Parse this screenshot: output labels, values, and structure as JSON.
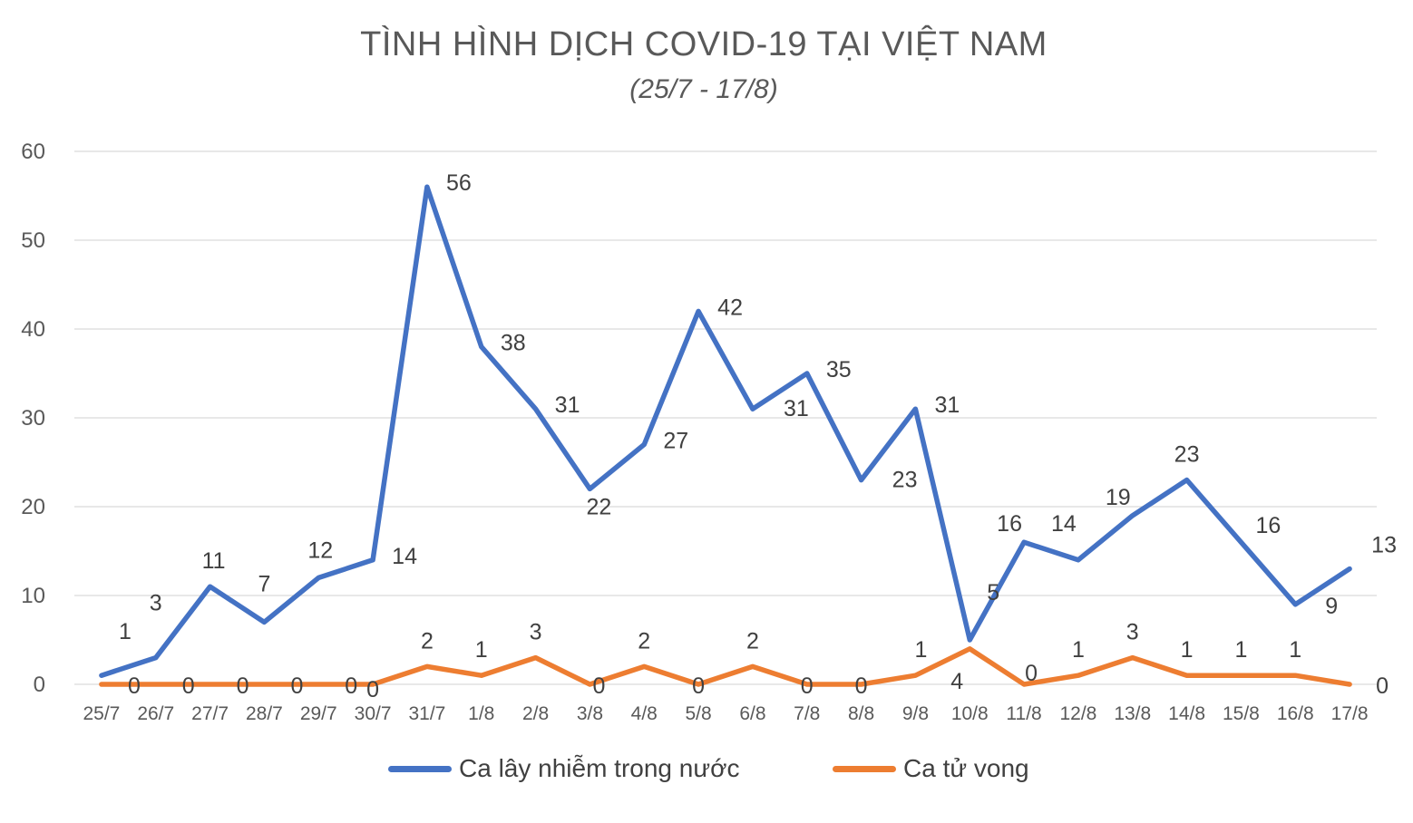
{
  "title": "TÌNH HÌNH DỊCH COVID-19 TẠI VIỆT NAM",
  "subtitle": "(25/7 - 17/8)",
  "chart_data": {
    "type": "line",
    "categories": [
      "25/7",
      "26/7",
      "27/7",
      "28/7",
      "29/7",
      "30/7",
      "31/7",
      "1/8",
      "2/8",
      "3/8",
      "4/8",
      "5/8",
      "6/8",
      "7/8",
      "8/8",
      "9/8",
      "10/8",
      "11/8",
      "12/8",
      "13/8",
      "14/8",
      "15/8",
      "16/8",
      "17/8"
    ],
    "y_ticks": [
      "0",
      "10",
      "20",
      "30",
      "40",
      "50",
      "60"
    ],
    "ylim": [
      0,
      60
    ],
    "grid": true,
    "legend_position": "bottom",
    "series": [
      {
        "name": "Ca lây nhiễm trong nước",
        "color": "#4472C4",
        "values": [
          1,
          3,
          11,
          7,
          12,
          14,
          56,
          38,
          31,
          22,
          27,
          42,
          31,
          35,
          23,
          31,
          5,
          16,
          14,
          19,
          23,
          16,
          9,
          13
        ],
        "labels": [
          "1",
          "3",
          "11",
          "7",
          "12",
          "14",
          "56",
          "38",
          "31",
          "22",
          "27",
          "42",
          "31",
          "35",
          "23",
          "31",
          "5",
          "16",
          "14",
          "19",
          "23",
          "16",
          "9",
          "13"
        ]
      },
      {
        "name": "Ca tử vong",
        "color": "#ED7D31",
        "values": [
          0,
          0,
          0,
          0,
          0,
          0,
          2,
          1,
          3,
          0,
          2,
          0,
          2,
          0,
          0,
          1,
          4,
          0,
          1,
          3,
          1,
          1,
          1,
          0
        ],
        "labels": [
          "0",
          "0",
          "0",
          "0",
          "0",
          "0",
          "2",
          "1",
          "3",
          "0",
          "2",
          "0",
          "2",
          "0",
          "0",
          "1",
          "4",
          "0",
          "1",
          "3",
          "1",
          "1",
          "1",
          "0"
        ]
      }
    ]
  }
}
